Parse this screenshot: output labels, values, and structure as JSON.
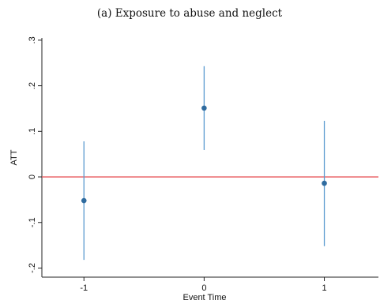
{
  "chart_data": {
    "type": "scatter",
    "title": "(a) Exposure to abuse and neglect",
    "xlabel": "Event Time",
    "ylabel": "ATT",
    "xlim": [
      -1.35,
      1.45
    ],
    "ylim": [
      -0.22,
      0.305
    ],
    "x_ticks": [
      {
        "value": -1,
        "label": "-1"
      },
      {
        "value": 0,
        "label": "0"
      },
      {
        "value": 1,
        "label": "1"
      }
    ],
    "y_ticks": [
      {
        "value": -0.2,
        "label": "-.2"
      },
      {
        "value": -0.1,
        "label": "-.1"
      },
      {
        "value": 0,
        "label": "0"
      },
      {
        "value": 0.1,
        "label": ".1"
      },
      {
        "value": 0.2,
        "label": ".2"
      },
      {
        "value": 0.3,
        "label": ".3"
      }
    ],
    "points": [
      {
        "x": -1,
        "y": -0.052,
        "ci_low": -0.182,
        "ci_high": 0.078
      },
      {
        "x": 0,
        "y": 0.151,
        "ci_low": 0.059,
        "ci_high": 0.243
      },
      {
        "x": 1,
        "y": -0.014,
        "ci_low": -0.152,
        "ci_high": 0.123
      }
    ],
    "reference_line": {
      "y": 0,
      "color": "#e8575a"
    },
    "point_color": "#2f6b9f",
    "ci_color": "#5b9bd0",
    "grid": false
  }
}
